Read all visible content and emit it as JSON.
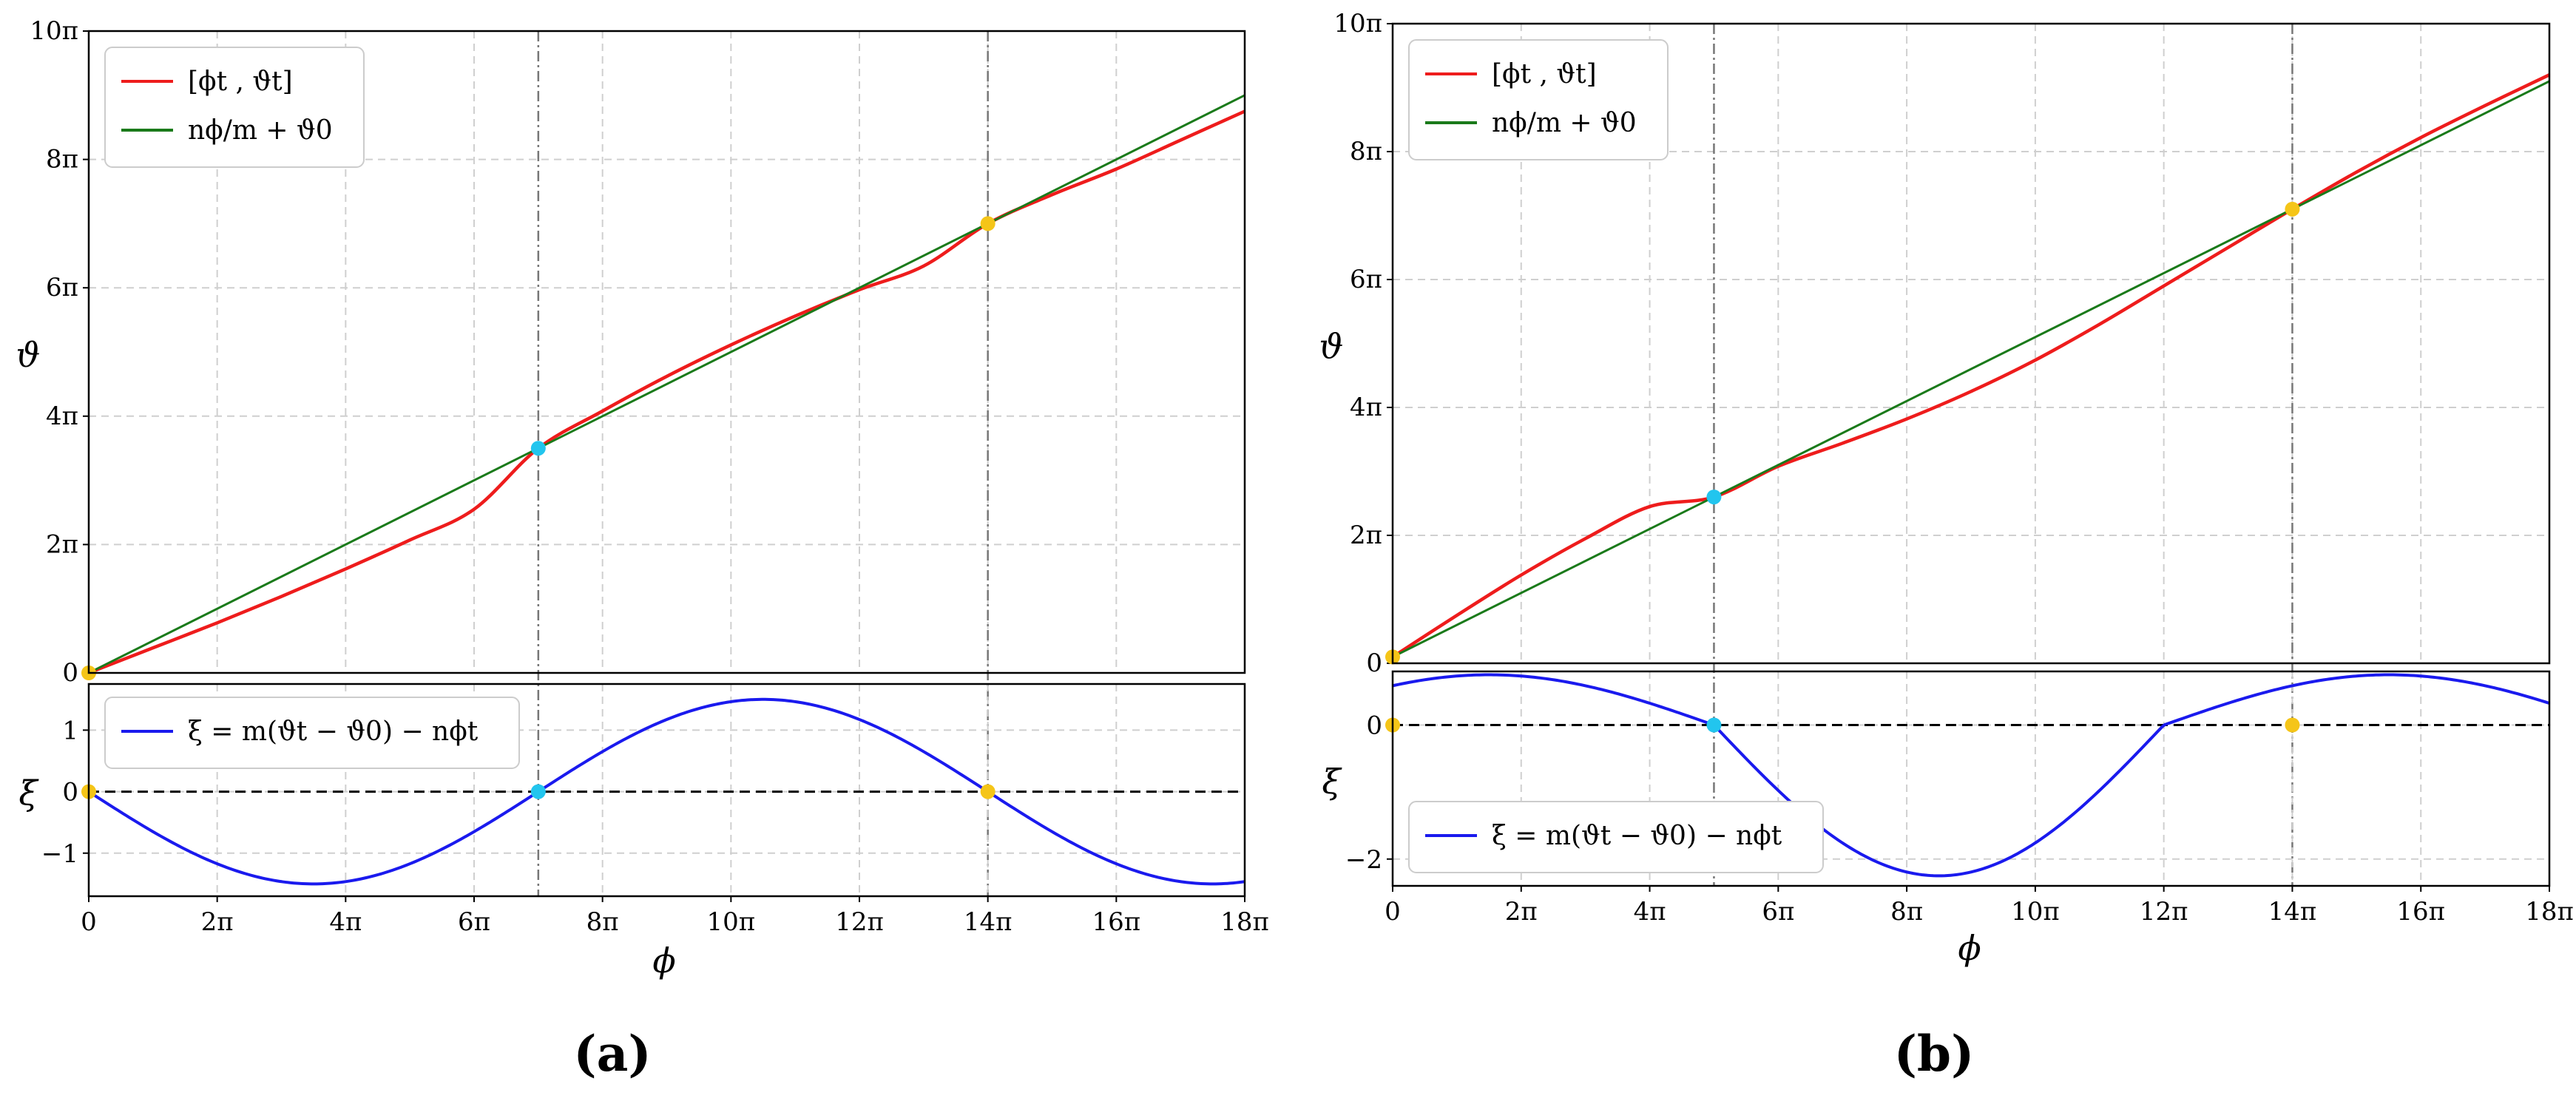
{
  "colors": {
    "traj": "#ee1c1c",
    "linear": "#1a7a1a",
    "xi": "#1a1aee",
    "ref": "#000000",
    "cyan": "#22c5ee",
    "yellow": "#f5c518",
    "vline": "#777777"
  },
  "chart_data": [
    {
      "type": "line",
      "panel_label": "(a)",
      "xlabel": "ϕ",
      "x_ticks": [
        "0",
        "2π",
        "4π",
        "6π",
        "8π",
        "10π",
        "12π",
        "14π",
        "16π",
        "18π"
      ],
      "xlim": [
        0,
        18
      ],
      "x_units": "π",
      "vertical_lines_x": [
        7,
        14
      ],
      "top": {
        "ylabel": "ϑ",
        "ylim": [
          0,
          10
        ],
        "y_units": "π",
        "y_ticks": [
          "0",
          "2π",
          "4π",
          "6π",
          "8π",
          "10π"
        ],
        "legend": [
          "[ϕt , ϑt]",
          "nϕ/m + ϑ0"
        ],
        "legend_position": "top-left",
        "series": [
          {
            "key": "traj",
            "x": [
              0,
              1,
              2,
              3,
              4,
              5,
              6,
              7,
              8,
              9,
              10,
              11,
              12,
              13,
              14,
              15,
              16,
              17,
              18
            ],
            "y": [
              0,
              0.39,
              0.78,
              1.19,
              1.62,
              2.07,
              2.55,
              3.5,
              4.08,
              4.62,
              5.11,
              5.56,
              5.97,
              6.34,
              7.0,
              7.45,
              7.85,
              8.3,
              8.75
            ]
          },
          {
            "key": "linear",
            "x": [
              0,
              18
            ],
            "y": [
              0,
              9.0
            ]
          }
        ],
        "markers": [
          {
            "x": 0,
            "y": 0,
            "color": "yellow"
          },
          {
            "x": 7,
            "y": 3.5,
            "color": "cyan"
          },
          {
            "x": 14,
            "y": 7.0,
            "color": "yellow"
          }
        ]
      },
      "bottom": {
        "ylabel": "ξ",
        "ylim": [
          -1.7,
          1.75
        ],
        "y_ticks": [
          -1,
          0,
          1
        ],
        "y_tick_labels": [
          "−1",
          "0",
          "1"
        ],
        "legend": [
          "ξ = m(ϑt − ϑ0) − nϕt"
        ],
        "legend_position": "top-left",
        "series": [
          {
            "key": "xi",
            "amplitude": -1.5,
            "period": 14,
            "x0": 0
          }
        ],
        "reference_y": 0,
        "markers": [
          {
            "x": 0,
            "y": 0,
            "color": "yellow"
          },
          {
            "x": 7,
            "y": 0,
            "color": "cyan"
          },
          {
            "x": 14,
            "y": 0,
            "color": "yellow"
          }
        ]
      }
    },
    {
      "type": "line",
      "panel_label": "(b)",
      "xlabel": "ϕ",
      "x_ticks": [
        "0",
        "2π",
        "4π",
        "6π",
        "8π",
        "10π",
        "12π",
        "14π",
        "16π",
        "18π"
      ],
      "xlim": [
        0,
        18
      ],
      "x_units": "π",
      "vertical_lines_x": [
        5,
        14
      ],
      "top": {
        "ylabel": "ϑ",
        "ylim": [
          0,
          10
        ],
        "y_units": "π",
        "y_ticks": [
          "0",
          "2π",
          "4π",
          "6π",
          "8π",
          "10π"
        ],
        "legend": [
          "[ϕt , ϑt]",
          "nϕ/m + ϑ0"
        ],
        "legend_position": "top-left",
        "series": [
          {
            "key": "traj",
            "x": [
              0,
              1,
              2,
              3,
              4,
              5,
              6,
              7,
              8,
              9,
              10,
              11,
              12,
              13,
              14,
              15,
              16,
              17,
              18
            ],
            "y": [
              0.1,
              0.75,
              1.38,
              1.95,
              2.45,
              2.6,
              3.08,
              3.44,
              3.82,
              4.25,
              4.74,
              5.3,
              5.9,
              6.5,
              7.1,
              7.68,
              8.22,
              8.72,
              9.2
            ]
          },
          {
            "key": "linear",
            "x": [
              0,
              18
            ],
            "y": [
              0.1,
              9.1
            ]
          }
        ],
        "markers": [
          {
            "x": 0,
            "y": 0.1,
            "color": "yellow"
          },
          {
            "x": 5,
            "y": 2.6,
            "color": "cyan"
          },
          {
            "x": 14,
            "y": 7.1,
            "color": "yellow"
          }
        ]
      },
      "bottom": {
        "ylabel": "ξ",
        "ylim": [
          -2.4,
          0.8
        ],
        "y_ticks": [
          -2,
          0
        ],
        "y_tick_labels": [
          "−2",
          "0"
        ],
        "legend": [
          "ξ = m(ϑt − ϑ0) − nϕt"
        ],
        "legend_position": "bottom-left",
        "series": [
          {
            "key": "xi",
            "amplitude_pos": 0.75,
            "amplitude_neg": -2.25,
            "period": 14,
            "x0": 5
          }
        ],
        "reference_y": 0,
        "markers": [
          {
            "x": 0,
            "y": 0,
            "color": "yellow"
          },
          {
            "x": 5,
            "y": 0,
            "color": "cyan"
          },
          {
            "x": 14,
            "y": 0,
            "color": "yellow"
          }
        ]
      }
    }
  ]
}
